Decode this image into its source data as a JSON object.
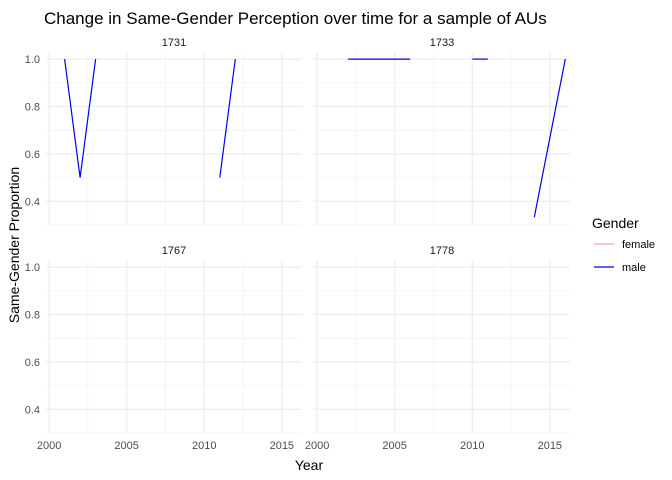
{
  "chart_data": {
    "type": "line",
    "title": "Change in Same-Gender Perception over time for a sample of AUs",
    "xlabel": "Year",
    "ylabel": "Same-Gender Proportion",
    "xlim": [
      1999.8,
      2016.3
    ],
    "ylim": [
      0.3,
      1.03
    ],
    "x_ticks": [
      2000,
      2005,
      2010,
      2015
    ],
    "x_tick_labels": [
      "2000",
      "2005",
      "2010",
      "2015"
    ],
    "y_ticks": [
      0.4,
      0.6,
      0.8,
      1.0
    ],
    "y_tick_labels": [
      "0.4",
      "0.6",
      "0.8",
      "1.0"
    ],
    "grid": true,
    "legend": {
      "title": "Gender",
      "placement": "right",
      "entries": [
        {
          "label": "female",
          "color": "#ff9ec4"
        },
        {
          "label": "male",
          "color": "#0000ee"
        }
      ]
    },
    "panels": [
      {
        "label": "1731",
        "series": [
          {
            "name": "male",
            "segments": [
              [
                [
                  2001,
                  1.0
                ],
                [
                  2002,
                  0.5
                ],
                [
                  2003,
                  1.0
                ]
              ],
              [
                [
                  2011,
                  0.5
                ],
                [
                  2012,
                  1.0
                ]
              ]
            ]
          }
        ]
      },
      {
        "label": "1733",
        "series": [
          {
            "name": "male",
            "segments": [
              [
                [
                  2002,
                  1.0
                ],
                [
                  2006,
                  1.0
                ]
              ],
              [
                [
                  2010,
                  1.0
                ],
                [
                  2011,
                  1.0
                ]
              ],
              [
                [
                  2014,
                  0.333
                ],
                [
                  2016,
                  1.0
                ]
              ]
            ]
          }
        ]
      },
      {
        "label": "1767",
        "series": []
      },
      {
        "label": "1778",
        "series": []
      }
    ]
  }
}
